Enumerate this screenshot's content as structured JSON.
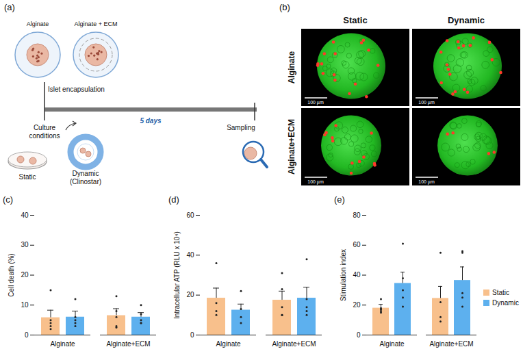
{
  "panel_a": {
    "label": "(a)",
    "capsules": [
      "Alginate",
      "Alginate + ECM"
    ],
    "encapsulation": "Islet encapsulation",
    "duration": "5 days",
    "culture": "Culture conditions",
    "culture_types": [
      "Static",
      "Dynamic (Clinostar)"
    ],
    "sampling": "Sampling"
  },
  "panel_b": {
    "label": "(b)",
    "columns": [
      "Static",
      "Dynamic"
    ],
    "rows": [
      "Alginate",
      "Alginate+ECM"
    ],
    "scale_bar": "100 µm"
  },
  "chart_data": [
    {
      "type": "bar",
      "panel_label": "(c)",
      "y_label": "Cell death (%)",
      "categories": [
        "Alginate",
        "Alginate+ECM"
      ],
      "series": [
        {
          "name": "Static",
          "color": "#f8c08c",
          "values": [
            5.8,
            6.5
          ],
          "errors": [
            2.5,
            2.3
          ],
          "points": [
            [
              15,
              5,
              4,
              3,
              2
            ],
            [
              13,
              8,
              6,
              3,
              2.5
            ]
          ]
        },
        {
          "name": "Dynamic",
          "color": "#5db0ee",
          "values": [
            6,
            6
          ],
          "errors": [
            2,
            1.5
          ],
          "points": [
            [
              12,
              6,
              4,
              5,
              3
            ],
            [
              10,
              7,
              5,
              4,
              4
            ]
          ]
        }
      ],
      "ylim": [
        0,
        40
      ],
      "yticks": [
        0,
        10,
        20,
        30,
        40
      ],
      "grid": false
    },
    {
      "type": "bar",
      "panel_label": "(d)",
      "y_label": "Intracellular ATP (RLU x 10⁴)",
      "categories": [
        "Alginate",
        "Alginate+ECM"
      ],
      "series": [
        {
          "name": "Static",
          "color": "#f8c08c",
          "values": [
            18.5,
            17.5
          ],
          "errors": [
            5,
            4.5
          ],
          "points": [
            [
              36,
              16,
              12,
              10
            ],
            [
              31,
              23,
              14,
              10,
              10
            ]
          ]
        },
        {
          "name": "Dynamic",
          "color": "#5db0ee",
          "values": [
            12.5,
            18.5
          ],
          "errors": [
            3,
            5.5
          ],
          "points": [
            [
              22,
              13,
              9,
              6
            ],
            [
              38,
              18,
              12,
              10,
              14
            ]
          ]
        }
      ],
      "ylim": [
        0,
        60
      ],
      "yticks": [
        0,
        20,
        40,
        60
      ],
      "grid": false
    },
    {
      "type": "bar",
      "panel_label": "(e)",
      "y_label": "Stimulation index",
      "categories": [
        "Alginate",
        "Alginate+ECM"
      ],
      "series": [
        {
          "name": "Static",
          "color": "#f8c08c",
          "values": [
            18,
            24.5
          ],
          "errors": [
            2.5,
            8
          ],
          "points": [
            [
              24,
              18,
              16,
              15,
              17
            ],
            [
              55,
              22,
              12,
              9
            ]
          ]
        },
        {
          "name": "Dynamic",
          "color": "#5db0ee",
          "values": [
            34.5,
            36.5
          ],
          "errors": [
            7.5,
            9
          ],
          "points": [
            [
              61,
              38,
              30,
              25,
              19
            ],
            [
              56,
              55,
              28,
              25,
              19
            ]
          ]
        }
      ],
      "ylim": [
        0,
        80
      ],
      "yticks": [
        0,
        20,
        40,
        60,
        80
      ],
      "grid": false,
      "legend": "right"
    }
  ]
}
